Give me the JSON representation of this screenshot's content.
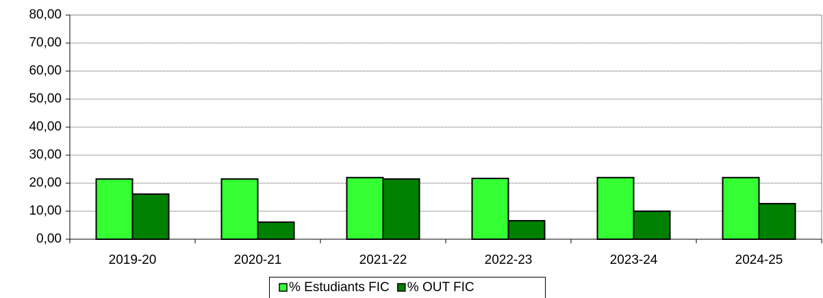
{
  "chart_data": {
    "type": "bar",
    "categories": [
      "2019-20",
      "2020-21",
      "2021-22",
      "2022-23",
      "2023-24",
      "2024-25"
    ],
    "series": [
      {
        "name": "% Estudiants FIC",
        "color": "#33ff33",
        "values": [
          21.5,
          21.5,
          22,
          21.7,
          22,
          22
        ]
      },
      {
        "name": "% OUT FIC",
        "color": "#008000",
        "values": [
          16.1,
          6.1,
          21.5,
          6.6,
          10,
          12.7
        ]
      }
    ],
    "ylim": [
      0,
      80
    ],
    "yticks": [
      {
        "value": 0,
        "label": "0,00"
      },
      {
        "value": 10,
        "label": "10,00"
      },
      {
        "value": 20,
        "label": "20,00"
      },
      {
        "value": 30,
        "label": "30,00"
      },
      {
        "value": 40,
        "label": "40,00"
      },
      {
        "value": 50,
        "label": "50,00"
      },
      {
        "value": 60,
        "label": "60,00"
      },
      {
        "value": 70,
        "label": "70,00"
      },
      {
        "value": 80,
        "label": "80,00"
      }
    ],
    "grid": true,
    "legend": "bottom"
  }
}
